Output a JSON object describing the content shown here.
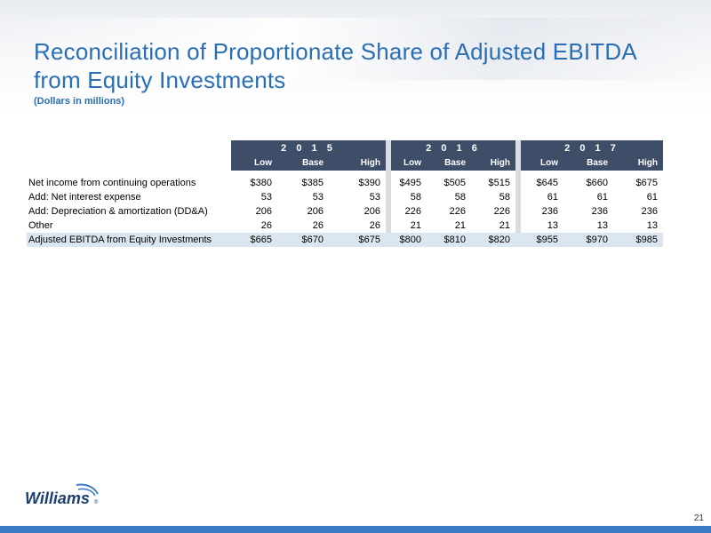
{
  "title": "Reconciliation of Proportionate Share of Adjusted EBITDA from Equity Investments",
  "subtitle": "(Dollars in millions)",
  "years": [
    "2 0 1 5",
    "2 0 1 6",
    "2 0 1 7"
  ],
  "columns": [
    "Low",
    "Base",
    "High",
    "Low",
    "Base",
    "High",
    "Low",
    "Base",
    "High"
  ],
  "rows": [
    {
      "label": "Net income from continuing operations",
      "values": [
        "$380",
        "$385",
        "$390",
        "$495",
        "$505",
        "$515",
        "$645",
        "$660",
        "$675"
      ]
    },
    {
      "label": "Add:  Net interest expense",
      "values": [
        "53",
        "53",
        "53",
        "58",
        "58",
        "58",
        "61",
        "61",
        "61"
      ]
    },
    {
      "label": "Add:  Depreciation & amortization (DD&A)",
      "values": [
        "206",
        "206",
        "206",
        "226",
        "226",
        "226",
        "236",
        "236",
        "236"
      ]
    },
    {
      "label": "Other",
      "values": [
        "26",
        "26",
        "26",
        "21",
        "21",
        "21",
        "13",
        "13",
        "13"
      ]
    }
  ],
  "total": {
    "label": "Adjusted EBITDA from Equity Investments",
    "values": [
      "$665",
      "$670",
      "$675",
      "$800",
      "$810",
      "$820",
      "$955",
      "$970",
      "$985"
    ]
  },
  "logo_text": "Williams",
  "page_number": "21",
  "colors": {
    "title": "#2a6fb6",
    "header_bg": "#3f4e68",
    "total_bg": "#dce6f1",
    "footer": "#3a7cc4"
  }
}
